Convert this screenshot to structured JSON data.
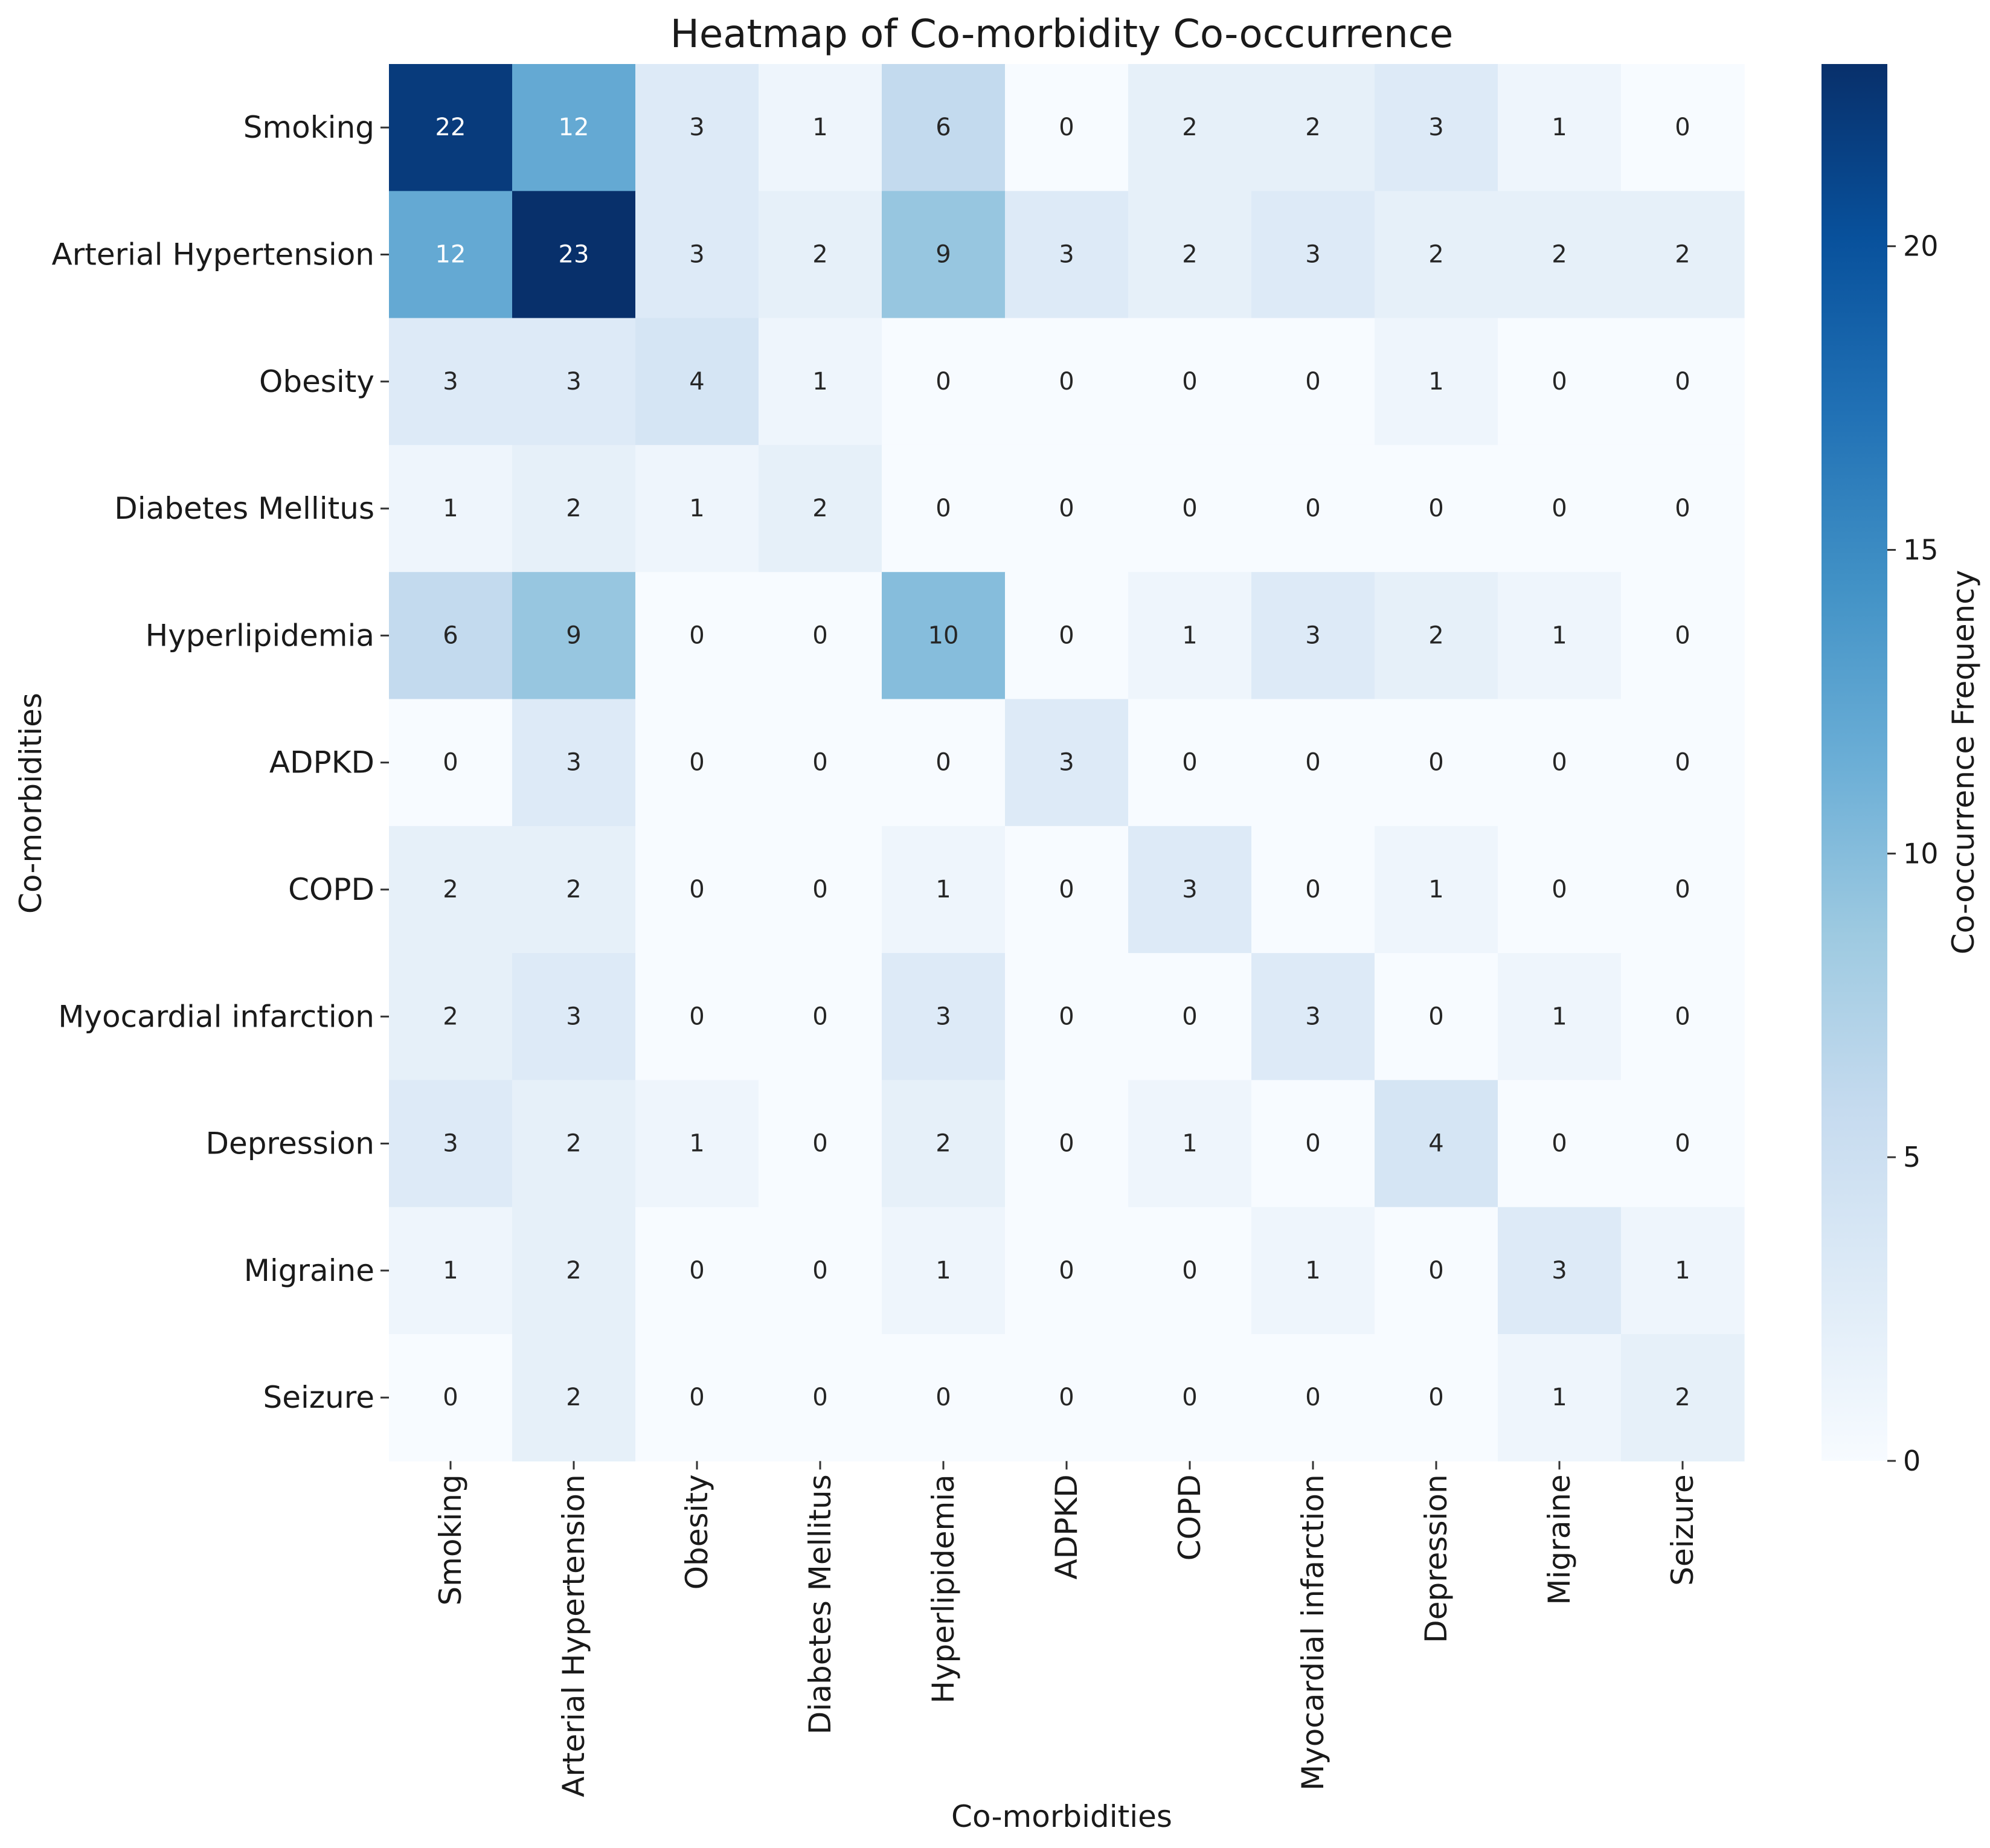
{
  "chart_data": {
    "type": "heatmap",
    "title": "Heatmap of Co-morbidity Co-occurrence",
    "xlabel": "Co-morbidities",
    "ylabel": "Co-morbidities",
    "colorbar_label": "Co-occurrence Frequency",
    "colorbar_range": [
      0,
      23
    ],
    "colorbar_ticks": [
      "0",
      "5",
      "10",
      "15",
      "20"
    ],
    "colormap": "Blues",
    "categories": [
      "Smoking",
      "Arterial Hypertension",
      "Obesity",
      "Diabetes Mellitus",
      "Hyperlipidemia",
      "ADPKD",
      "COPD",
      "Myocardial infarction",
      "Depression",
      "Migraine",
      "Seizure"
    ],
    "values": [
      [
        22,
        12,
        3,
        1,
        6,
        0,
        2,
        2,
        3,
        1,
        0
      ],
      [
        12,
        23,
        3,
        2,
        9,
        3,
        2,
        3,
        2,
        2,
        2
      ],
      [
        3,
        3,
        4,
        1,
        0,
        0,
        0,
        0,
        1,
        0,
        0
      ],
      [
        1,
        2,
        1,
        2,
        0,
        0,
        0,
        0,
        0,
        0,
        0
      ],
      [
        6,
        9,
        0,
        0,
        10,
        0,
        1,
        3,
        2,
        1,
        0
      ],
      [
        0,
        3,
        0,
        0,
        0,
        3,
        0,
        0,
        0,
        0,
        0
      ],
      [
        2,
        2,
        0,
        0,
        1,
        0,
        3,
        0,
        1,
        0,
        0
      ],
      [
        2,
        3,
        0,
        0,
        3,
        0,
        0,
        3,
        0,
        1,
        0
      ],
      [
        3,
        2,
        1,
        0,
        2,
        0,
        1,
        0,
        4,
        0,
        0
      ],
      [
        1,
        2,
        0,
        0,
        1,
        0,
        0,
        1,
        0,
        3,
        1
      ],
      [
        0,
        2,
        0,
        0,
        0,
        0,
        0,
        0,
        0,
        1,
        2
      ]
    ]
  }
}
